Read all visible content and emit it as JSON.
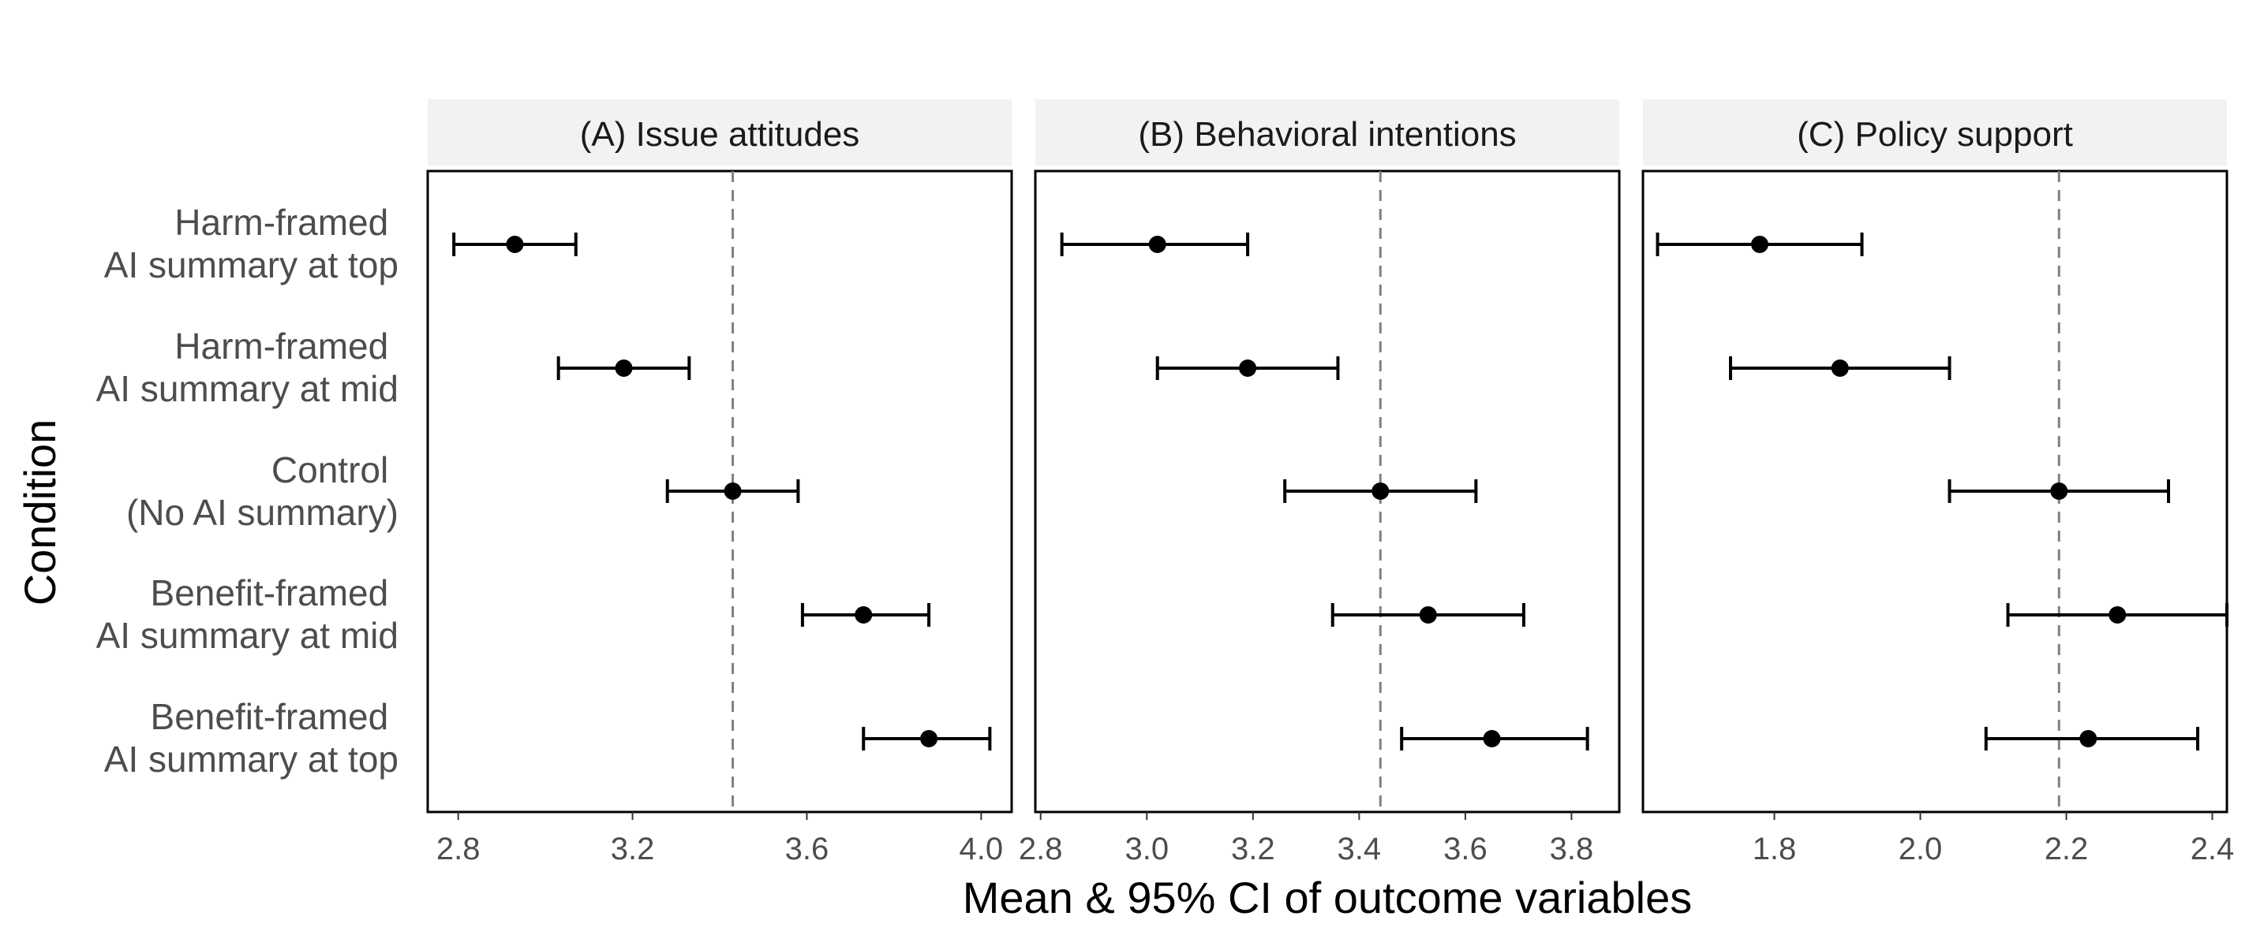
{
  "colors": {
    "strip": "#f2f2f2",
    "panel_border": "#000000",
    "point": "#000000",
    "reference_line": "#808080"
  },
  "axis_titles": {
    "x": "Mean & 95% CI of outcome variables",
    "y": "Condition"
  },
  "conditions": [
    [
      "Harm-framed",
      "AI summary at top"
    ],
    [
      "Harm-framed",
      "AI summary at mid"
    ],
    [
      "Control",
      "(No AI summary)"
    ],
    [
      "Benefit-framed",
      "AI summary at mid"
    ],
    [
      "Benefit-framed",
      "AI summary at top"
    ]
  ],
  "chart_data": [
    {
      "type": "scatter",
      "title": "(A) Issue attitudes",
      "xlabel": "Mean & 95% CI of outcome variables",
      "ylabel": "Condition",
      "xlim": [
        2.73,
        4.07
      ],
      "ticks": [
        2.8,
        3.2,
        3.6,
        4.0
      ],
      "tick_labels": [
        "2.8",
        "3.2",
        "3.6",
        "4.0"
      ],
      "reference": 3.43,
      "means": [
        2.93,
        3.18,
        3.43,
        3.73,
        3.88
      ],
      "lower": [
        2.79,
        3.03,
        3.28,
        3.59,
        3.73
      ],
      "upper": [
        3.07,
        3.33,
        3.58,
        3.88,
        4.02
      ]
    },
    {
      "type": "scatter",
      "title": "(B) Behavioral intentions",
      "xlabel": "Mean & 95% CI of outcome variables",
      "ylabel": "Condition",
      "xlim": [
        2.79,
        3.89
      ],
      "ticks": [
        2.8,
        3.0,
        3.2,
        3.4,
        3.6,
        3.8
      ],
      "tick_labels": [
        "2.8",
        "3.0",
        "3.2",
        "3.4",
        "3.6",
        "3.8"
      ],
      "reference": 3.44,
      "means": [
        3.02,
        3.19,
        3.44,
        3.53,
        3.65
      ],
      "lower": [
        2.84,
        3.02,
        3.26,
        3.35,
        3.48
      ],
      "upper": [
        3.19,
        3.36,
        3.62,
        3.71,
        3.83
      ]
    },
    {
      "type": "scatter",
      "title": "(C) Policy support",
      "xlabel": "Mean & 95% CI of outcome variables",
      "ylabel": "Condition",
      "xlim": [
        1.62,
        2.42
      ],
      "ticks": [
        1.8,
        2.0,
        2.2,
        2.4
      ],
      "tick_labels": [
        "1.8",
        "2.0",
        "2.2",
        "2.4"
      ],
      "reference": 2.19,
      "means": [
        1.78,
        1.89,
        2.19,
        2.27,
        2.23
      ],
      "lower": [
        1.64,
        1.74,
        2.04,
        2.12,
        2.09
      ],
      "upper": [
        1.92,
        2.04,
        2.34,
        2.42,
        2.38
      ]
    }
  ]
}
